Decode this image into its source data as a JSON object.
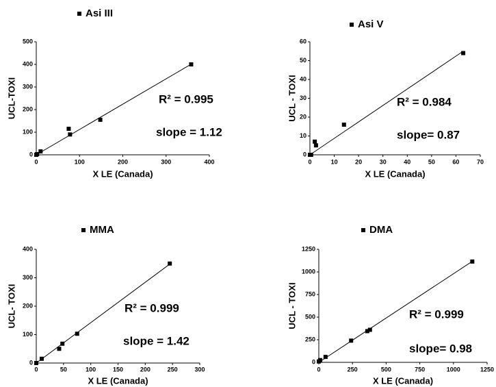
{
  "chart_data": [
    {
      "type": "scatter",
      "xlabel": "X LE (Canada)",
      "ylabel": "UCL-TOXI",
      "series": [
        {
          "name": "Asi III",
          "color": "#000000",
          "x": [
            0,
            2,
            10,
            75,
            78,
            148,
            358
          ],
          "values": [
            0,
            3,
            15,
            115,
            90,
            155,
            400
          ]
        }
      ],
      "trendline": {
        "x": [
          0,
          358
        ],
        "y": [
          0,
          401
        ]
      },
      "annotations": [
        "R² = 0.995",
        "slope = 1.12"
      ],
      "xlim": [
        0,
        400
      ],
      "xticks": [
        0,
        100,
        200,
        300,
        400
      ],
      "ylim": [
        0,
        500
      ],
      "yticks": [
        0,
        100,
        200,
        300,
        400,
        500
      ]
    },
    {
      "type": "scatter",
      "xlabel": "X LE (Canada)",
      "ylabel": "UCL - TOXI",
      "series": [
        {
          "name": "Asi V",
          "color": "#000000",
          "x": [
            0,
            0.5,
            2,
            2.5,
            14,
            63
          ],
          "values": [
            0,
            0,
            7,
            5,
            16,
            54
          ]
        }
      ],
      "trendline": {
        "x": [
          0,
          63
        ],
        "y": [
          0,
          55
        ]
      },
      "annotations": [
        "R² = 0.984",
        "slope= 0.87"
      ],
      "xlim": [
        0,
        70
      ],
      "xticks": [
        0,
        10,
        20,
        30,
        40,
        50,
        60,
        70
      ],
      "ylim": [
        0,
        60
      ],
      "yticks": [
        0,
        10,
        20,
        30,
        40,
        50,
        60
      ]
    },
    {
      "type": "scatter",
      "xlabel": "X LE (Canada)",
      "ylabel": "UCL- TOXI",
      "series": [
        {
          "name": "MMA",
          "color": "#000000",
          "x": [
            0,
            10,
            42,
            48,
            75,
            245
          ],
          "values": [
            0,
            15,
            50,
            68,
            103,
            350
          ]
        }
      ],
      "trendline": {
        "x": [
          0,
          245
        ],
        "y": [
          0,
          348
        ]
      },
      "annotations": [
        "R² = 0.999",
        "slope = 1.42"
      ],
      "xlim": [
        0,
        300
      ],
      "xticks": [
        0,
        50,
        100,
        150,
        200,
        250,
        300
      ],
      "ylim": [
        0,
        400
      ],
      "yticks": [
        0,
        100,
        200,
        300,
        400
      ]
    },
    {
      "type": "scatter",
      "xlabel": "X LE (Canada)",
      "ylabel": "UCL - TOXI",
      "series": [
        {
          "name": "DMA",
          "color": "#000000",
          "x": [
            0,
            10,
            50,
            240,
            360,
            380,
            1140
          ],
          "values": [
            10,
            25,
            60,
            240,
            345,
            360,
            1115
          ]
        }
      ],
      "trendline": {
        "x": [
          0,
          1140
        ],
        "y": [
          0,
          1117
        ]
      },
      "annotations": [
        "R² = 0.999",
        "slope= 0.98"
      ],
      "xlim": [
        0,
        1250
      ],
      "xticks": [
        0,
        250,
        500,
        750,
        1000,
        1250
      ],
      "ylim": [
        0,
        1250
      ],
      "yticks": [
        0,
        250,
        500,
        750,
        1000,
        1250
      ]
    }
  ]
}
